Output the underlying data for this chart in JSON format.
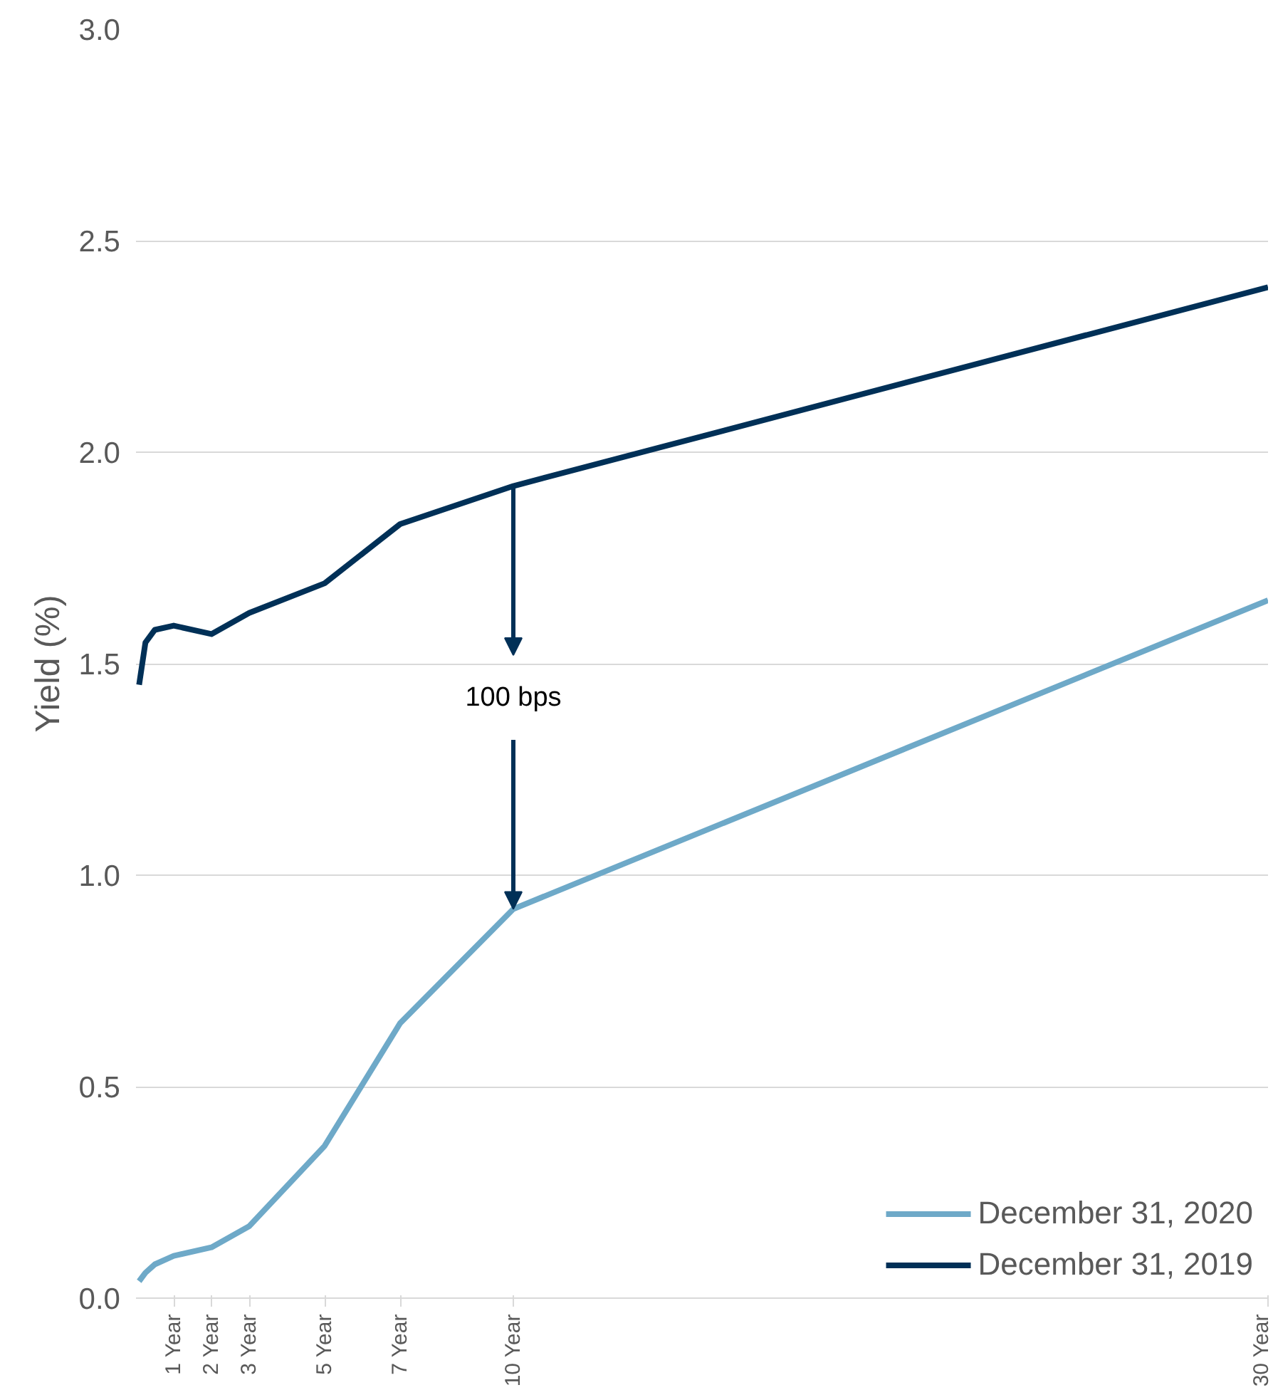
{
  "chart_data": {
    "type": "line",
    "ylabel": "Yield (%)",
    "series": [
      {
        "name": "December 31, 2020",
        "color": "#6ea9c8",
        "x": [
          0.083,
          0.25,
          0.5,
          1,
          2,
          3,
          5,
          7,
          10,
          30
        ],
        "values": [
          0.04,
          0.06,
          0.08,
          0.1,
          0.12,
          0.17,
          0.36,
          0.65,
          0.92,
          1.65
        ]
      },
      {
        "name": "December 31, 2019",
        "color": "#003057",
        "x": [
          0.083,
          0.25,
          0.5,
          1,
          2,
          3,
          5,
          7,
          10,
          30
        ],
        "values": [
          1.45,
          1.55,
          1.58,
          1.59,
          1.57,
          1.62,
          1.69,
          1.83,
          1.92,
          2.39
        ]
      }
    ],
    "xlim": [
      0,
      30
    ],
    "xticks": [
      {
        "value": 1,
        "label": "1 Year"
      },
      {
        "value": 2,
        "label": "2 Year"
      },
      {
        "value": 3,
        "label": "3 Year"
      },
      {
        "value": 5,
        "label": "5 Year"
      },
      {
        "value": 7,
        "label": "7 Year"
      },
      {
        "value": 10,
        "label": "10 Year"
      },
      {
        "value": 30,
        "label": "30 Year"
      }
    ],
    "ylim": [
      0,
      3
    ],
    "yticks": [
      {
        "value": 0,
        "label": "0.0"
      },
      {
        "value": 0.5,
        "label": "0.5"
      },
      {
        "value": 1,
        "label": "1.0"
      },
      {
        "value": 1.5,
        "label": "1.5"
      },
      {
        "value": 2,
        "label": "2.0"
      },
      {
        "value": 2.5,
        "label": "2.5"
      },
      {
        "value": 3,
        "label": "3.0"
      }
    ],
    "annotations": [
      {
        "text": "100 bps",
        "x": 10,
        "y": 0.92
      }
    ],
    "grid": "y",
    "legend": "bottom right",
    "marker": "none",
    "line_style": "solid"
  }
}
